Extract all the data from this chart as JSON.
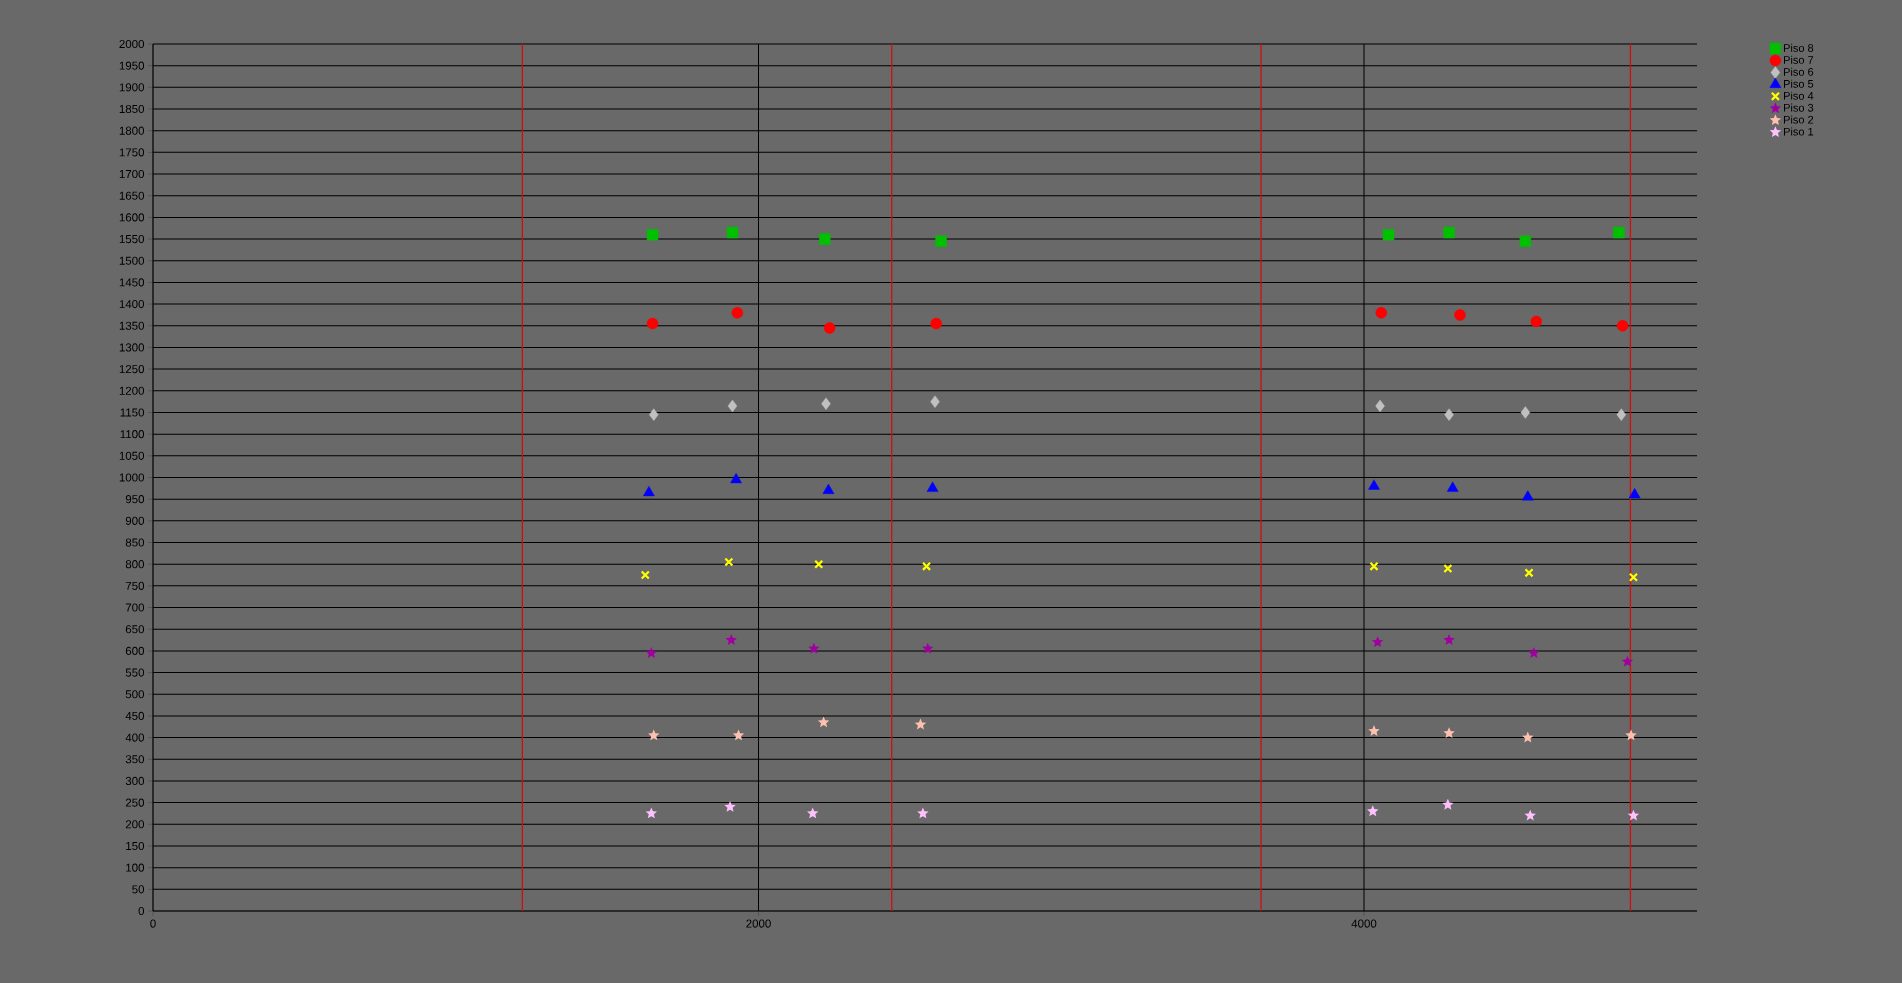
{
  "chart_data": {
    "type": "scatter",
    "xlim": [
      0,
      5100
    ],
    "xticks": [
      0,
      2000,
      4000
    ],
    "ylim": [
      0,
      2000
    ],
    "yticks": [
      0,
      50,
      100,
      150,
      200,
      250,
      300,
      350,
      400,
      450,
      500,
      550,
      600,
      650,
      700,
      750,
      800,
      850,
      900,
      950,
      1000,
      1050,
      1100,
      1150,
      1200,
      1250,
      1300,
      1350,
      1400,
      1450,
      1500,
      1550,
      1600,
      1650,
      1700,
      1750,
      1800,
      1850,
      1900,
      1950,
      2000
    ],
    "grid": true,
    "legend": "top right",
    "ref_lines": [
      {
        "axis": "x",
        "value": 1220,
        "color": "#d01010"
      },
      {
        "axis": "x",
        "value": 2440,
        "color": "#d01010"
      },
      {
        "axis": "x",
        "value": 3660,
        "color": "#d01010"
      },
      {
        "axis": "x",
        "value": 4880,
        "color": "#d01010"
      }
    ],
    "series": [
      {
        "name": "Piso 8",
        "color": "#00c000",
        "marker": "square",
        "x": [
          1650,
          1914,
          2219,
          2603,
          4081,
          4281,
          4533,
          4842
        ],
        "values": [
          1560,
          1565,
          1550,
          1545,
          1560,
          1565,
          1545,
          1565
        ]
      },
      {
        "name": "Piso 7",
        "color": "#ff0000",
        "marker": "circle",
        "x": [
          1650,
          1930,
          2235,
          2587,
          4057,
          4317,
          4569,
          4854
        ],
        "values": [
          1355,
          1380,
          1345,
          1355,
          1380,
          1375,
          1360,
          1350
        ]
      },
      {
        "name": "Piso 6",
        "color": "#c0c0c0",
        "marker": "diamond",
        "x": [
          1654,
          1914,
          2223,
          2583,
          4053,
          4281,
          4533,
          4850
        ],
        "values": [
          1145,
          1165,
          1170,
          1175,
          1165,
          1145,
          1150,
          1145
        ]
      },
      {
        "name": "Piso 5",
        "color": "#0000ff",
        "marker": "triangle",
        "x": [
          1638,
          1926,
          2231,
          2575,
          4033,
          4293,
          4541,
          4894
        ],
        "values": [
          965,
          995,
          970,
          975,
          980,
          975,
          955,
          960
        ]
      },
      {
        "name": "Piso 4",
        "color": "#ffff00",
        "marker": "cross",
        "x": [
          1626,
          1902,
          2199,
          2555,
          4033,
          4277,
          4545,
          4890
        ],
        "values": [
          775,
          805,
          800,
          795,
          795,
          790,
          780,
          770
        ]
      },
      {
        "name": "Piso 3",
        "color": "#a000a0",
        "marker": "star",
        "x": [
          1646,
          1910,
          2183,
          2559,
          4045,
          4281,
          4561,
          4870
        ],
        "values": [
          595,
          625,
          605,
          605,
          620,
          625,
          595,
          575
        ]
      },
      {
        "name": "Piso 2",
        "color": "#ffc0b0",
        "marker": "star",
        "x": [
          1654,
          1934,
          2215,
          2535,
          4033,
          4281,
          4541,
          4882
        ],
        "values": [
          405,
          405,
          435,
          430,
          415,
          410,
          400,
          405
        ]
      },
      {
        "name": "Piso 1",
        "color": "#ffc0ff",
        "marker": "star",
        "x": [
          1646,
          1906,
          2179,
          2543,
          4029,
          4277,
          4549,
          4890
        ],
        "values": [
          225,
          240,
          225,
          225,
          230,
          245,
          220,
          220
        ]
      }
    ]
  }
}
